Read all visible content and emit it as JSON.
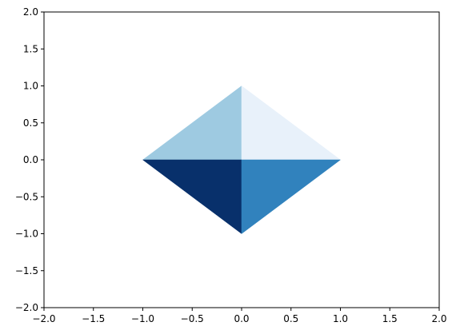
{
  "chart_data": {
    "type": "area",
    "title": "",
    "xlabel": "",
    "ylabel": "",
    "xlim": [
      -2.0,
      2.0
    ],
    "ylim": [
      -2.0,
      2.0
    ],
    "grid": false,
    "x_ticks": [
      -2.0,
      -1.5,
      -1.0,
      -0.5,
      0.0,
      0.5,
      1.0,
      1.5,
      2.0
    ],
    "y_ticks": [
      -2.0,
      -1.5,
      -1.0,
      -0.5,
      0.0,
      0.5,
      1.0,
      1.5,
      2.0
    ],
    "x_tick_labels": [
      "−2.0",
      "−1.5",
      "−1.0",
      "−0.5",
      "0.0",
      "0.5",
      "1.0",
      "1.5",
      "2.0"
    ],
    "y_tick_labels": [
      "−2.0",
      "−1.5",
      "−1.0",
      "−0.5",
      "0.0",
      "0.5",
      "1.0",
      "1.5",
      "2.0"
    ],
    "polygons": [
      {
        "points": [
          [
            -1,
            0
          ],
          [
            0,
            0
          ],
          [
            0,
            1
          ]
        ],
        "color": "#9ecae1"
      },
      {
        "points": [
          [
            0,
            0
          ],
          [
            1,
            0
          ],
          [
            0,
            1
          ]
        ],
        "color": "#e8f1fa"
      },
      {
        "points": [
          [
            -1,
            0
          ],
          [
            0,
            0
          ],
          [
            0,
            -1
          ]
        ],
        "color": "#08306b"
      },
      {
        "points": [
          [
            0,
            0
          ],
          [
            1,
            0
          ],
          [
            0,
            -1
          ]
        ],
        "color": "#3182bd"
      }
    ]
  }
}
